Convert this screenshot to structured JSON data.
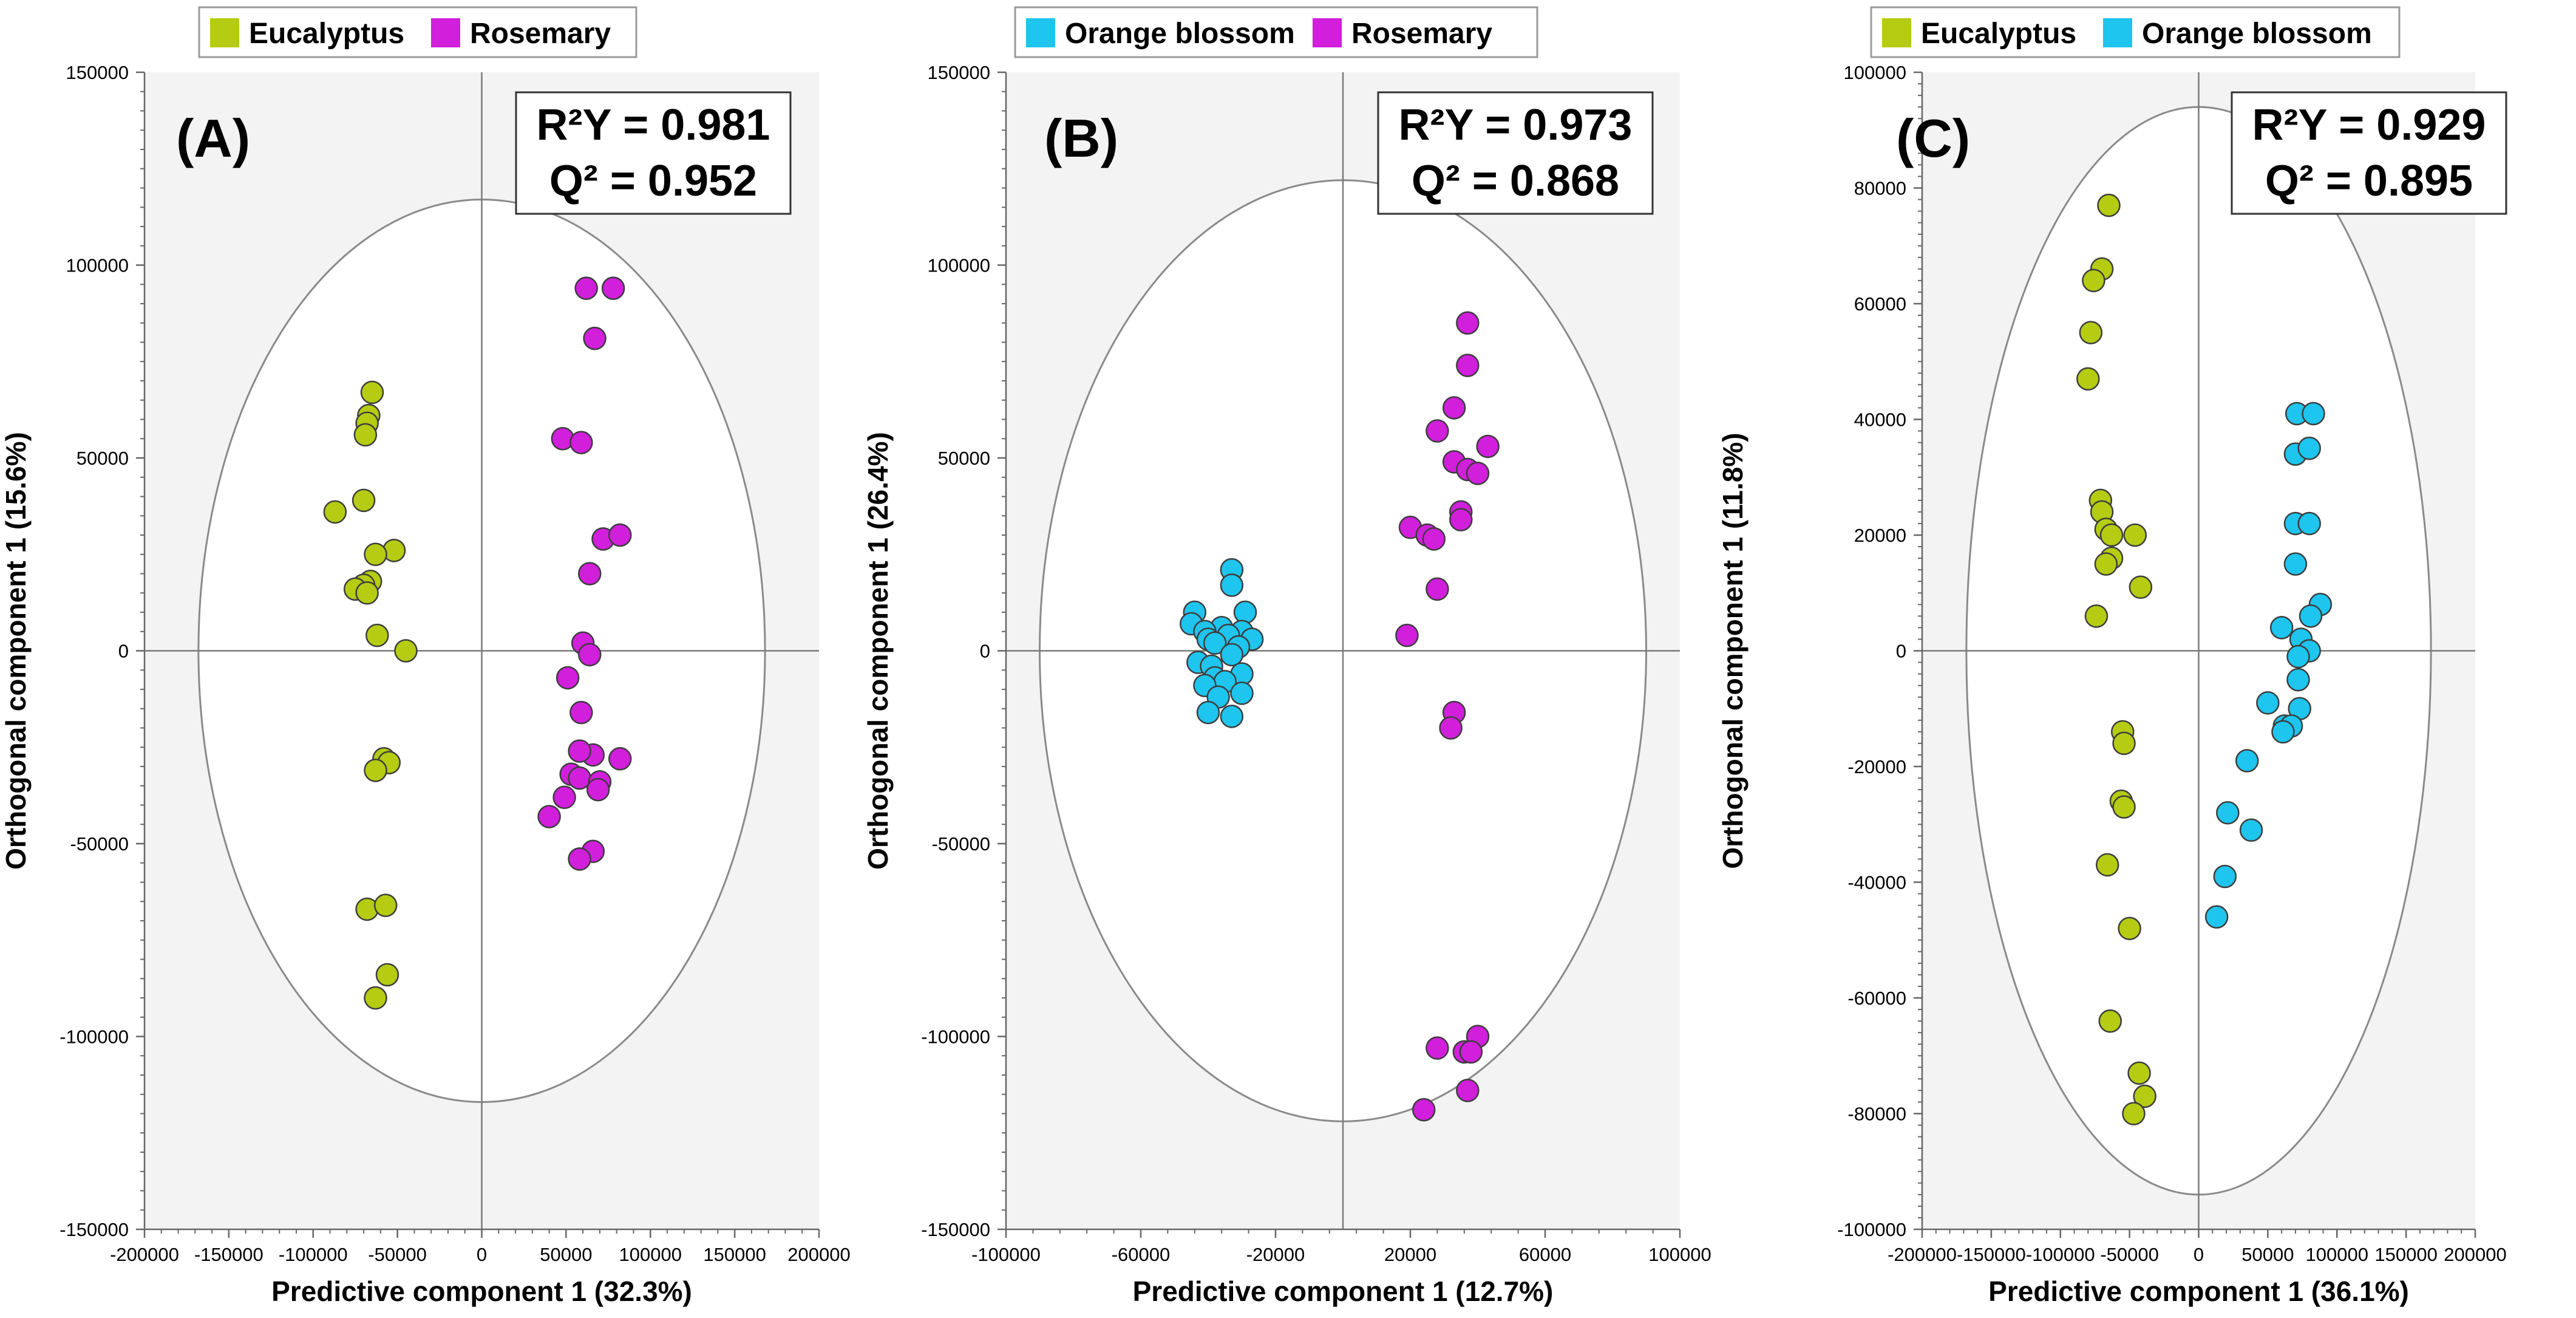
{
  "chart_data": [
    {
      "panel": "A",
      "type": "scatter",
      "panel_label": "(A)",
      "xlabel": "Predictive component 1 (32.3%)",
      "ylabel": "Orthogonal component 1 (15.6%)",
      "xlim": [
        -200000,
        200000
      ],
      "ylim": [
        -150000,
        150000
      ],
      "xticks": [
        -200000,
        -150000,
        -100000,
        -50000,
        0,
        50000,
        100000,
        150000,
        200000
      ],
      "yticks": [
        -150000,
        -100000,
        -50000,
        0,
        50000,
        100000,
        150000
      ],
      "stats": {
        "r2y_label": "R²Y = 0.981",
        "q2_label": "Q² = 0.952"
      },
      "ellipse": {
        "rx": 168000,
        "ry": 117000
      },
      "legend": [
        {
          "name": "Eucalyptus",
          "color": "#b5cc12"
        },
        {
          "name": "Rosemary",
          "color": "#d11fdc"
        }
      ],
      "series": [
        {
          "name": "Eucalyptus",
          "color": "#b5cc12",
          "points": [
            [
              -65000,
              67000
            ],
            [
              -67000,
              61000
            ],
            [
              -68000,
              59000
            ],
            [
              -69000,
              56000
            ],
            [
              -70000,
              39000
            ],
            [
              -87000,
              36000
            ],
            [
              -52000,
              26000
            ],
            [
              -63000,
              25000
            ],
            [
              -66000,
              18000
            ],
            [
              -70000,
              17000
            ],
            [
              -75000,
              16000
            ],
            [
              -68000,
              15000
            ],
            [
              -62000,
              4000
            ],
            [
              -45000,
              0
            ],
            [
              -58000,
              -28000
            ],
            [
              -55000,
              -29000
            ],
            [
              -63000,
              -31000
            ],
            [
              -68000,
              -67000
            ],
            [
              -57000,
              -66000
            ],
            [
              -56000,
              -84000
            ],
            [
              -63000,
              -90000
            ]
          ]
        },
        {
          "name": "Rosemary",
          "color": "#d11fdc",
          "points": [
            [
              62000,
              94000
            ],
            [
              78000,
              94000
            ],
            [
              67000,
              81000
            ],
            [
              48000,
              55000
            ],
            [
              59000,
              54000
            ],
            [
              72000,
              29000
            ],
            [
              82000,
              30000
            ],
            [
              64000,
              20000
            ],
            [
              60000,
              2000
            ],
            [
              64000,
              -1000
            ],
            [
              51000,
              -7000
            ],
            [
              59000,
              -16000
            ],
            [
              66000,
              -27000
            ],
            [
              58000,
              -26000
            ],
            [
              82000,
              -28000
            ],
            [
              53000,
              -32000
            ],
            [
              58000,
              -33000
            ],
            [
              70000,
              -34000
            ],
            [
              69000,
              -36000
            ],
            [
              49000,
              -38000
            ],
            [
              40000,
              -43000
            ],
            [
              66000,
              -52000
            ],
            [
              58000,
              -54000
            ]
          ]
        }
      ]
    },
    {
      "panel": "B",
      "type": "scatter",
      "panel_label": "(B)",
      "xlabel": "Predictive component 1 (12.7%)",
      "ylabel": "Orthogonal component 1 (26.4%)",
      "xlim": [
        -100000,
        100000
      ],
      "ylim": [
        -150000,
        150000
      ],
      "xticks": [
        -100000,
        -60000,
        -20000,
        20000,
        60000,
        100000
      ],
      "yticks": [
        -150000,
        -100000,
        -50000,
        0,
        50000,
        100000,
        150000
      ],
      "stats": {
        "r2y_label": "R²Y = 0.973",
        "q2_label": "Q² = 0.868"
      },
      "ellipse": {
        "rx": 90000,
        "ry": 122000
      },
      "legend": [
        {
          "name": "Orange blossom",
          "color": "#1ec5ee"
        },
        {
          "name": "Rosemary",
          "color": "#d11fdc"
        }
      ],
      "series": [
        {
          "name": "Orange blossom",
          "color": "#1ec5ee",
          "points": [
            [
              -33000,
              21000
            ],
            [
              -33000,
              17000
            ],
            [
              -44000,
              10000
            ],
            [
              -29000,
              10000
            ],
            [
              -45000,
              7000
            ],
            [
              -36000,
              6000
            ],
            [
              -41000,
              5000
            ],
            [
              -30000,
              5000
            ],
            [
              -34000,
              4000
            ],
            [
              -40000,
              3000
            ],
            [
              -27000,
              3000
            ],
            [
              -38000,
              2000
            ],
            [
              -31000,
              1000
            ],
            [
              -33000,
              -1000
            ],
            [
              -43000,
              -3000
            ],
            [
              -39000,
              -4000
            ],
            [
              -30000,
              -6000
            ],
            [
              -38000,
              -7000
            ],
            [
              -35000,
              -8000
            ],
            [
              -41000,
              -9000
            ],
            [
              -30000,
              -11000
            ],
            [
              -37000,
              -12000
            ],
            [
              -40000,
              -16000
            ],
            [
              -33000,
              -17000
            ]
          ]
        },
        {
          "name": "Rosemary",
          "color": "#d11fdc",
          "points": [
            [
              37000,
              85000
            ],
            [
              37000,
              74000
            ],
            [
              33000,
              63000
            ],
            [
              28000,
              57000
            ],
            [
              43000,
              53000
            ],
            [
              33000,
              49000
            ],
            [
              37000,
              47000
            ],
            [
              40000,
              46000
            ],
            [
              35000,
              36000
            ],
            [
              35000,
              34000
            ],
            [
              20000,
              32000
            ],
            [
              25000,
              30000
            ],
            [
              27000,
              29000
            ],
            [
              28000,
              16000
            ],
            [
              19000,
              4000
            ],
            [
              33000,
              -16000
            ],
            [
              32000,
              -20000
            ],
            [
              40000,
              -100000
            ],
            [
              28000,
              -103000
            ],
            [
              36000,
              -104000
            ],
            [
              38000,
              -104000
            ],
            [
              37000,
              -114000
            ],
            [
              24000,
              -119000
            ]
          ]
        }
      ]
    },
    {
      "panel": "C",
      "type": "scatter",
      "panel_label": "(C)",
      "xlabel": "Predictive component 1 (36.1%)",
      "ylabel": "Orthogonal component 1 (11.8%)",
      "xlim": [
        -200000,
        200000
      ],
      "ylim": [
        -100000,
        100000
      ],
      "xticks": [
        -200000,
        -150000,
        -100000,
        -50000,
        0,
        50000,
        100000,
        150000,
        200000
      ],
      "yticks": [
        -100000,
        -80000,
        -60000,
        -40000,
        -20000,
        0,
        20000,
        40000,
        60000,
        80000,
        100000
      ],
      "stats": {
        "r2y_label": "R²Y = 0.929",
        "q2_label": "Q² = 0.895"
      },
      "ellipse": {
        "rx": 168000,
        "ry": 94000
      },
      "legend": [
        {
          "name": "Eucalyptus",
          "color": "#b5cc12"
        },
        {
          "name": "Orange blossom",
          "color": "#1ec5ee"
        }
      ],
      "series": [
        {
          "name": "Eucalyptus",
          "color": "#b5cc12",
          "points": [
            [
              -65000,
              77000
            ],
            [
              -70000,
              66000
            ],
            [
              -76000,
              64000
            ],
            [
              -78000,
              55000
            ],
            [
              -80000,
              47000
            ],
            [
              -71000,
              26000
            ],
            [
              -70000,
              24000
            ],
            [
              -67000,
              21000
            ],
            [
              -63000,
              20000
            ],
            [
              -46000,
              20000
            ],
            [
              -63000,
              16000
            ],
            [
              -67000,
              15000
            ],
            [
              -42000,
              11000
            ],
            [
              -74000,
              6000
            ],
            [
              -55000,
              -14000
            ],
            [
              -54000,
              -16000
            ],
            [
              -56000,
              -26000
            ],
            [
              -54000,
              -27000
            ],
            [
              -66000,
              -37000
            ],
            [
              -50000,
              -48000
            ],
            [
              -64000,
              -64000
            ],
            [
              -43000,
              -73000
            ],
            [
              -39000,
              -77000
            ],
            [
              -47000,
              -80000
            ]
          ]
        },
        {
          "name": "Orange blossom",
          "color": "#1ec5ee",
          "points": [
            [
              71000,
              41000
            ],
            [
              83000,
              41000
            ],
            [
              70000,
              34000
            ],
            [
              80000,
              35000
            ],
            [
              70000,
              22000
            ],
            [
              80000,
              22000
            ],
            [
              70000,
              15000
            ],
            [
              88000,
              8000
            ],
            [
              81000,
              6000
            ],
            [
              60000,
              4000
            ],
            [
              74000,
              2000
            ],
            [
              80000,
              0
            ],
            [
              72000,
              -1000
            ],
            [
              72000,
              -5000
            ],
            [
              50000,
              -9000
            ],
            [
              73000,
              -10000
            ],
            [
              62000,
              -13000
            ],
            [
              67000,
              -13000
            ],
            [
              61000,
              -14000
            ],
            [
              35000,
              -19000
            ],
            [
              21000,
              -28000
            ],
            [
              38000,
              -31000
            ],
            [
              19000,
              -39000
            ],
            [
              13000,
              -46000
            ]
          ]
        }
      ]
    }
  ]
}
